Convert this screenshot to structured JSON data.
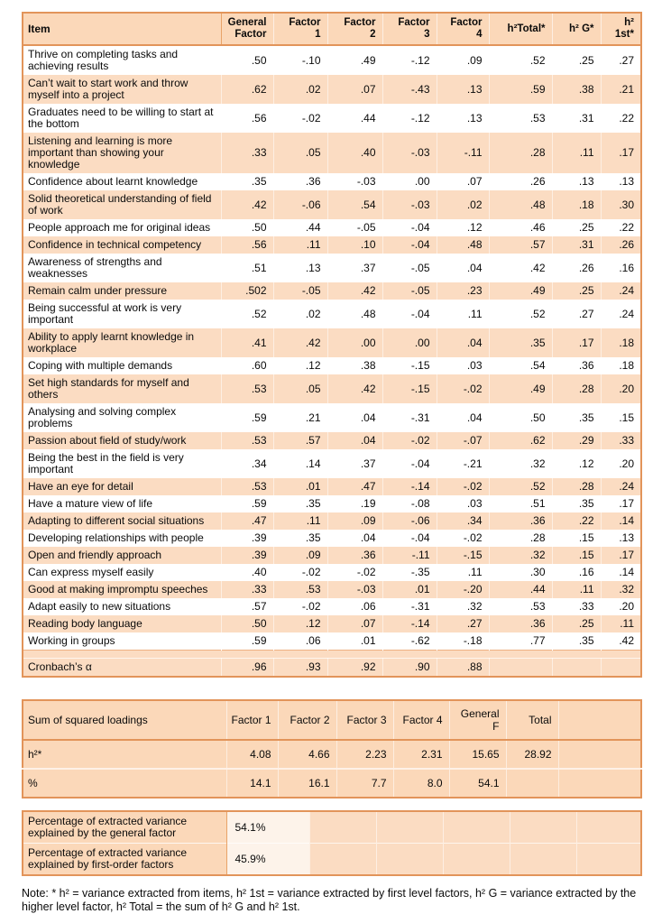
{
  "colors": {
    "table_fill_peach": "#fbd8b9",
    "row_fill_peach": "#fbdcc2",
    "row_fill_white": "#ffffff",
    "border_orange": "#e2945a",
    "text": "#0a0a0a"
  },
  "loadings_table": {
    "columns": [
      "Item",
      "General\nFactor",
      "Factor\n1",
      "Factor\n2",
      "Factor\n3",
      "Factor\n4",
      "h²Total*",
      "h² G*",
      "h² 1st*"
    ],
    "rows": [
      {
        "item": "Thrive on completing tasks and achieving results",
        "values": [
          ".50",
          "-.10",
          ".49",
          "-.12",
          ".09",
          ".52",
          ".25",
          ".27"
        ]
      },
      {
        "item": "Can’t wait to start work and throw myself into a project",
        "values": [
          ".62",
          ".02",
          ".07",
          "-.43",
          ".13",
          ".59",
          ".38",
          ".21"
        ]
      },
      {
        "item": "Graduates need to be willing to start at the bottom",
        "values": [
          ".56",
          "-.02",
          ".44",
          "-.12",
          ".13",
          ".53",
          ".31",
          ".22"
        ]
      },
      {
        "item": "Listening and learning is more important than showing your knowledge",
        "values": [
          ".33",
          ".05",
          ".40",
          "-.03",
          "-.11",
          ".28",
          ".11",
          ".17"
        ]
      },
      {
        "item": "Confidence about learnt knowledge",
        "values": [
          ".35",
          ".36",
          "-.03",
          ".00",
          ".07",
          ".26",
          ".13",
          ".13"
        ]
      },
      {
        "item": "Solid theoretical understanding of field of work",
        "values": [
          ".42",
          "-.06",
          ".54",
          "-.03",
          ".02",
          ".48",
          ".18",
          ".30"
        ]
      },
      {
        "item": "People approach me for original ideas",
        "values": [
          ".50",
          ".44",
          "-.05",
          "-.04",
          ".12",
          ".46",
          ".25",
          ".22"
        ]
      },
      {
        "item": "Confidence in technical competency",
        "values": [
          ".56",
          ".11",
          ".10",
          "-.04",
          ".48",
          ".57",
          ".31",
          ".26"
        ]
      },
      {
        "item": "Awareness of strengths and weaknesses",
        "values": [
          ".51",
          ".13",
          ".37",
          "-.05",
          ".04",
          ".42",
          ".26",
          ".16"
        ]
      },
      {
        "item": "Remain calm under pressure",
        "values": [
          ".502",
          "-.05",
          ".42",
          "-.05",
          ".23",
          ".49",
          ".25",
          ".24"
        ]
      },
      {
        "item": "Being successful at work is very important",
        "values": [
          ".52",
          ".02",
          ".48",
          "-.04",
          ".11",
          ".52",
          ".27",
          ".24"
        ]
      },
      {
        "item": "Ability to apply learnt knowledge in workplace",
        "values": [
          ".41",
          ".42",
          ".00",
          ".00",
          ".04",
          ".35",
          ".17",
          ".18"
        ]
      },
      {
        "item": "Coping with multiple demands",
        "values": [
          ".60",
          ".12",
          ".38",
          "-.15",
          ".03",
          ".54",
          ".36",
          ".18"
        ]
      },
      {
        "item": "Set high standards for myself and others",
        "values": [
          ".53",
          ".05",
          ".42",
          "-.15",
          "-.02",
          ".49",
          ".28",
          ".20"
        ]
      },
      {
        "item": "Analysing and solving complex problems",
        "values": [
          ".59",
          ".21",
          ".04",
          "-.31",
          ".04",
          ".50",
          ".35",
          ".15"
        ]
      },
      {
        "item": "Passion about field of study/work",
        "values": [
          ".53",
          ".57",
          ".04",
          "-.02",
          "-.07",
          ".62",
          ".29",
          ".33"
        ]
      },
      {
        "item": "Being the best in the field is very important",
        "values": [
          ".34",
          ".14",
          ".37",
          "-.04",
          "-.21",
          ".32",
          ".12",
          ".20"
        ]
      },
      {
        "item": "Have an eye for detail",
        "values": [
          ".53",
          ".01",
          ".47",
          "-.14",
          "-.02",
          ".52",
          ".28",
          ".24"
        ]
      },
      {
        "item": "Have a mature view of life",
        "values": [
          ".59",
          ".35",
          ".19",
          "-.08",
          ".03",
          ".51",
          ".35",
          ".17"
        ]
      },
      {
        "item": "Adapting to different social situations",
        "values": [
          ".47",
          ".11",
          ".09",
          "-.06",
          ".34",
          ".36",
          ".22",
          ".14"
        ]
      },
      {
        "item": "Developing relationships with people",
        "values": [
          ".39",
          ".35",
          ".04",
          "-.04",
          "-.02",
          ".28",
          ".15",
          ".13"
        ]
      },
      {
        "item": "Open and friendly approach",
        "values": [
          ".39",
          ".09",
          ".36",
          "-.11",
          "-.15",
          ".32",
          ".15",
          ".17"
        ]
      },
      {
        "item": "Can express myself easily",
        "values": [
          ".40",
          "-.02",
          "-.02",
          "-.35",
          ".11",
          ".30",
          ".16",
          ".14"
        ]
      },
      {
        "item": "Good at making impromptu speeches",
        "values": [
          ".33",
          ".53",
          "-.03",
          ".01",
          "-.20",
          ".44",
          ".11",
          ".32"
        ]
      },
      {
        "item": "Adapt easily to new situations",
        "values": [
          ".57",
          "-.02",
          ".06",
          "-.31",
          ".32",
          ".53",
          ".33",
          ".20"
        ]
      },
      {
        "item": "Reading body language",
        "values": [
          ".50",
          ".12",
          ".07",
          "-.14",
          ".27",
          ".36",
          ".25",
          ".11"
        ]
      },
      {
        "item": "Working in groups",
        "values": [
          ".59",
          ".06",
          ".01",
          "-.62",
          "-.18",
          ".77",
          ".35",
          ".42"
        ]
      }
    ],
    "cronbach": {
      "label": "Cronbach’s α",
      "values": [
        ".96",
        ".93",
        ".92",
        ".90",
        ".88",
        "",
        "",
        ""
      ]
    }
  },
  "ssl_table": {
    "header": [
      "Sum of squared loadings",
      "Factor 1",
      "Factor 2",
      "Factor 3",
      "Factor 4",
      "General F",
      "Total"
    ],
    "rows": [
      {
        "label": "h²*",
        "values": [
          "4.08",
          "4.66",
          "2.23",
          "2.31",
          "15.65",
          "28.92"
        ]
      },
      {
        "label": "%",
        "values": [
          "14.1",
          "16.1",
          "7.7",
          "8.0",
          "54.1",
          ""
        ]
      }
    ]
  },
  "variance_table": {
    "rows": [
      {
        "label": "Percentage of extracted variance explained by the general factor",
        "value": "54.1%"
      },
      {
        "label": "Percentage of extracted variance explained by first-order factors",
        "value": "45.9%"
      }
    ]
  },
  "note": {
    "text": "Note: * h² = variance extracted from items, h² 1st = variance extracted by first level factors, h² G = variance extracted by the higher level factor, h² Total = the sum of h² G and h² 1st."
  }
}
